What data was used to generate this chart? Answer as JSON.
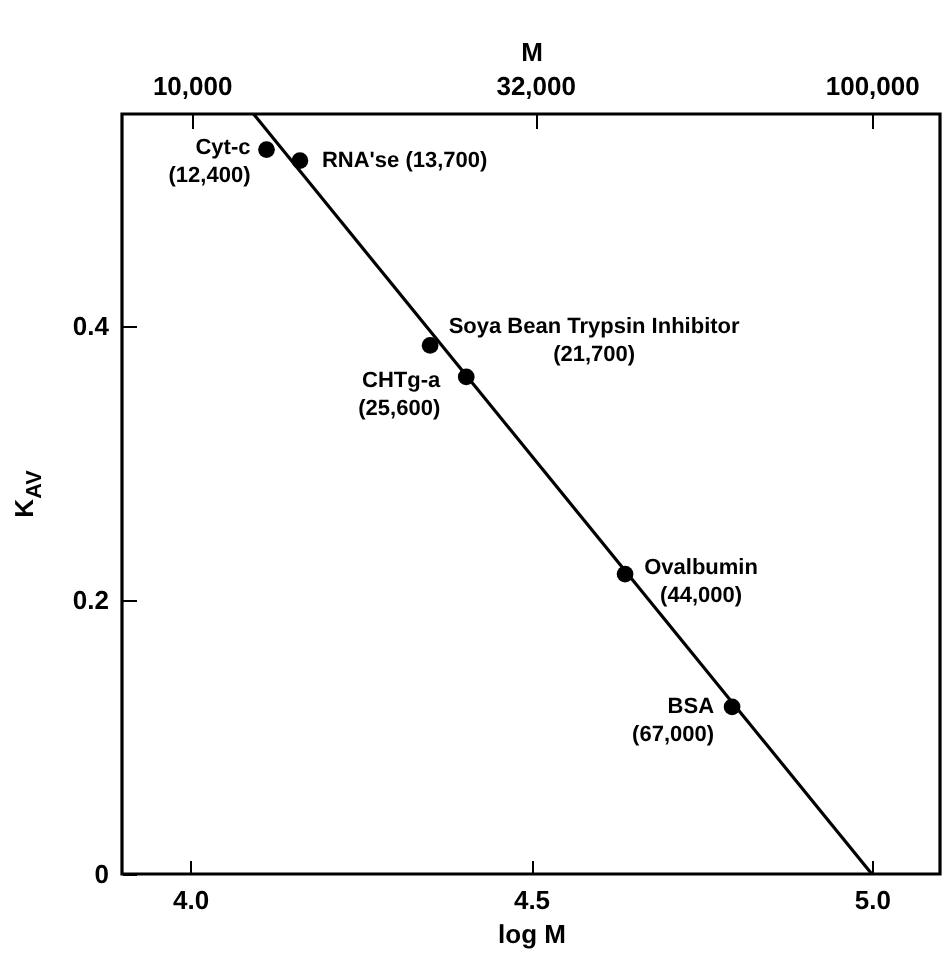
{
  "chart_data": {
    "type": "scatter",
    "xlabel": "log M",
    "ylabel": "K$_{AV}$",
    "x2label": "M",
    "series": [
      {
        "type": "scatter",
        "marker": "circle",
        "color": "#000000",
        "x": [
          4.112,
          4.161,
          4.352,
          4.405,
          4.638,
          4.795
        ],
        "values": [
          0.529,
          0.521,
          0.386,
          0.363,
          0.219,
          0.122
        ]
      },
      {
        "type": "line",
        "marker": "none",
        "color": "#000000",
        "x": [
          4.093,
          5.0
        ],
        "values": [
          0.555,
          0
        ]
      }
    ],
    "xlim": [
      3.9,
      5.1
    ],
    "ylim": [
      0,
      0.555
    ],
    "xticks": [
      {
        "value": 4,
        "label": "4.0"
      },
      {
        "value": 4.5,
        "label": "4.5"
      },
      {
        "value": 5,
        "label": "5.0"
      }
    ],
    "yticks": [
      0,
      0.2,
      0.4
    ],
    "x2lim": [
      7900,
      126000
    ],
    "x2ticks": [
      {
        "value": 10000,
        "label": "10,000"
      },
      {
        "value": 32000,
        "label": "32,000"
      },
      {
        "value": 100000,
        "label": "100,000"
      }
    ],
    "log": "x2",
    "line_style": "solid",
    "annotations": [
      {
        "text": "Cyt-c\n(12,400)",
        "x": 4.112,
        "y": 0.529
      },
      {
        "text": "RNA'se (13,700)",
        "x": 4.161,
        "y": 0.521
      },
      {
        "text": "Soya Bean Trypsin Inhibitor\n(21,700)",
        "x": 4.352,
        "y": 0.386
      },
      {
        "text": "CHTg-a\n(25,600)",
        "x": 4.405,
        "y": 0.363
      },
      {
        "text": "Ovalbumin\n(44,000)",
        "x": 4.638,
        "y": 0.219
      },
      {
        "text": "BSA\n(67,000)",
        "x": 4.795,
        "y": 0.122
      }
    ]
  }
}
